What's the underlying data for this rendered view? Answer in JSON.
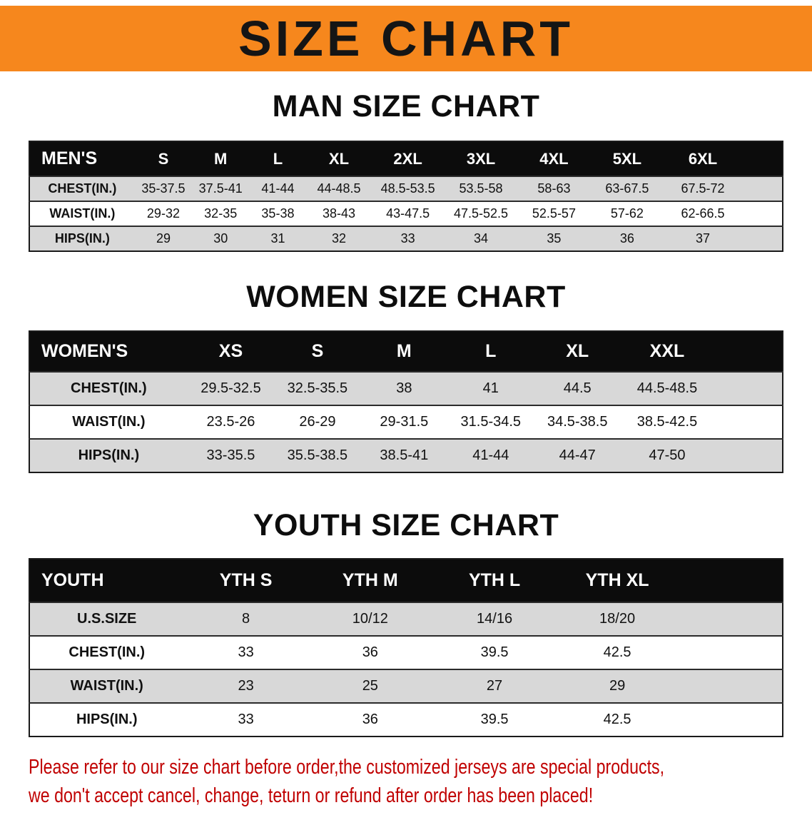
{
  "banner": {
    "title": "SIZE CHART"
  },
  "men": {
    "heading": "MAN SIZE CHART",
    "columns": [
      "MEN'S",
      "S",
      "M",
      "L",
      "XL",
      "2XL",
      "3XL",
      "4XL",
      "5XL",
      "6XL"
    ],
    "rows": [
      [
        "CHEST(IN.)",
        "35-37.5",
        "37.5-41",
        "41-44",
        "44-48.5",
        "48.5-53.5",
        "53.5-58",
        "58-63",
        "63-67.5",
        "67.5-72"
      ],
      [
        "WAIST(IN.)",
        "29-32",
        "32-35",
        "35-38",
        "38-43",
        "43-47.5",
        "47.5-52.5",
        "52.5-57",
        "57-62",
        "62-66.5"
      ],
      [
        "HIPS(IN.)",
        "29",
        "30",
        "31",
        "32",
        "33",
        "34",
        "35",
        "36",
        "37"
      ]
    ]
  },
  "women": {
    "heading": "WOMEN SIZE CHART",
    "columns": [
      "WOMEN'S",
      "XS",
      "S",
      "M",
      "L",
      "XL",
      "XXL"
    ],
    "rows": [
      [
        "CHEST(IN.)",
        "29.5-32.5",
        "32.5-35.5",
        "38",
        "41",
        "44.5",
        "44.5-48.5"
      ],
      [
        "WAIST(IN.)",
        "23.5-26",
        "26-29",
        "29-31.5",
        "31.5-34.5",
        "34.5-38.5",
        "38.5-42.5"
      ],
      [
        "HIPS(IN.)",
        "33-35.5",
        "35.5-38.5",
        "38.5-41",
        "41-44",
        "44-47",
        "47-50"
      ]
    ]
  },
  "youth": {
    "heading": "YOUTH SIZE CHART",
    "columns": [
      "YOUTH",
      "YTH S",
      "YTH M",
      "YTH L",
      "YTH XL"
    ],
    "rows": [
      [
        "U.S.SIZE",
        "8",
        "10/12",
        "14/16",
        "18/20"
      ],
      [
        "CHEST(IN.)",
        "33",
        "36",
        "39.5",
        "42.5"
      ],
      [
        "WAIST(IN.)",
        "23",
        "25",
        "27",
        "29"
      ],
      [
        "HIPS(IN.)",
        "33",
        "36",
        "39.5",
        "42.5"
      ]
    ]
  },
  "disclaimer": {
    "lines": [
      "Please refer to our size chart before order,the customized jerseys are special products,",
      "we don't accept cancel, change, teturn or refund after order has been placed!"
    ]
  },
  "colors": {
    "banner_bg": "#f6871d",
    "header_bg": "#0c0c0c",
    "stripe": "#d8d8d8",
    "disclaimer_text": "#c00000"
  }
}
